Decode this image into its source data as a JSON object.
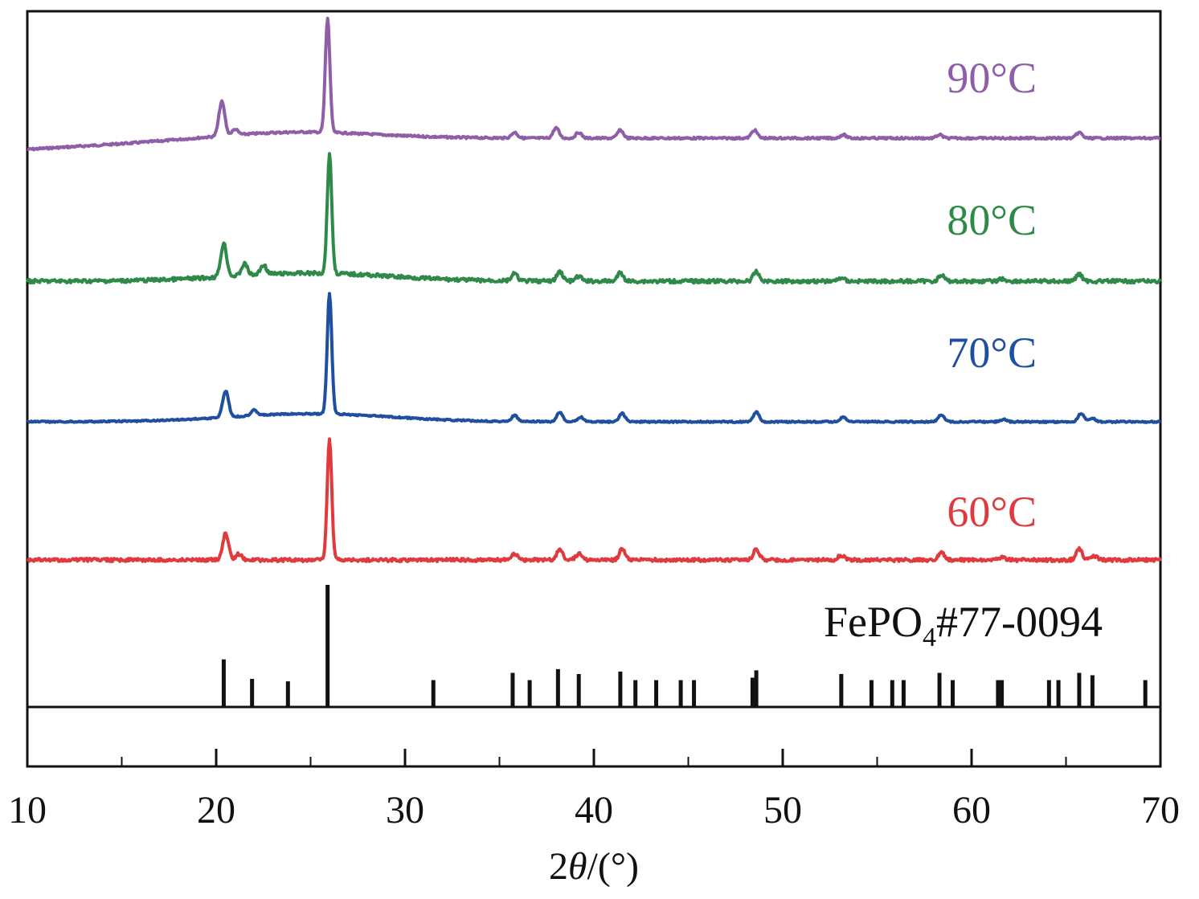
{
  "chart_data": {
    "type": "line",
    "title": "",
    "xlabel_prefix": "2",
    "xlabel_theta": "θ",
    "xlabel_suffix": "/(°)",
    "ylabel": "",
    "xlim": [
      10,
      70
    ],
    "x_ticks": [
      10,
      20,
      30,
      40,
      50,
      60,
      70
    ],
    "x_tick_labels": [
      "10",
      "20",
      "30",
      "40",
      "50",
      "60",
      "70"
    ],
    "grid": false,
    "series": [
      {
        "name": "90°C",
        "color": "#8e5ea8",
        "peaks": [
          {
            "x": 20.3,
            "h": 0.3
          },
          {
            "x": 21.0,
            "h": 0.05
          },
          {
            "x": 25.9,
            "h": 1.0
          },
          {
            "x": 35.8,
            "h": 0.05
          },
          {
            "x": 38.0,
            "h": 0.09
          },
          {
            "x": 39.2,
            "h": 0.05
          },
          {
            "x": 41.4,
            "h": 0.07
          },
          {
            "x": 48.5,
            "h": 0.07
          },
          {
            "x": 53.2,
            "h": 0.03
          },
          {
            "x": 58.3,
            "h": 0.03
          },
          {
            "x": 65.7,
            "h": 0.05
          }
        ]
      },
      {
        "name": "80°C",
        "color": "#2f8a4a",
        "peaks": [
          {
            "x": 20.4,
            "h": 0.28
          },
          {
            "x": 21.5,
            "h": 0.1
          },
          {
            "x": 22.5,
            "h": 0.08
          },
          {
            "x": 26.0,
            "h": 1.0
          },
          {
            "x": 35.8,
            "h": 0.06
          },
          {
            "x": 38.2,
            "h": 0.08
          },
          {
            "x": 39.2,
            "h": 0.04
          },
          {
            "x": 41.4,
            "h": 0.07
          },
          {
            "x": 48.6,
            "h": 0.08
          },
          {
            "x": 53.1,
            "h": 0.03
          },
          {
            "x": 58.4,
            "h": 0.05
          },
          {
            "x": 61.6,
            "h": 0.02
          },
          {
            "x": 65.7,
            "h": 0.06
          }
        ]
      },
      {
        "name": "70°C",
        "color": "#1f4fa0",
        "peaks": [
          {
            "x": 20.5,
            "h": 0.22
          },
          {
            "x": 22.0,
            "h": 0.05
          },
          {
            "x": 26.0,
            "h": 1.0
          },
          {
            "x": 35.8,
            "h": 0.05
          },
          {
            "x": 38.2,
            "h": 0.08
          },
          {
            "x": 39.3,
            "h": 0.04
          },
          {
            "x": 41.5,
            "h": 0.07
          },
          {
            "x": 48.6,
            "h": 0.08
          },
          {
            "x": 53.2,
            "h": 0.04
          },
          {
            "x": 58.4,
            "h": 0.06
          },
          {
            "x": 61.7,
            "h": 0.02
          },
          {
            "x": 65.8,
            "h": 0.07
          },
          {
            "x": 66.4,
            "h": 0.03
          }
        ]
      },
      {
        "name": "60°C",
        "color": "#e03a3e",
        "peaks": [
          {
            "x": 20.5,
            "h": 0.22
          },
          {
            "x": 21.2,
            "h": 0.05
          },
          {
            "x": 26.0,
            "h": 1.0
          },
          {
            "x": 35.8,
            "h": 0.05
          },
          {
            "x": 38.2,
            "h": 0.09
          },
          {
            "x": 39.2,
            "h": 0.05
          },
          {
            "x": 41.5,
            "h": 0.09
          },
          {
            "x": 48.6,
            "h": 0.09
          },
          {
            "x": 53.1,
            "h": 0.04
          },
          {
            "x": 58.4,
            "h": 0.07
          },
          {
            "x": 61.6,
            "h": 0.02
          },
          {
            "x": 65.7,
            "h": 0.09
          },
          {
            "x": 66.5,
            "h": 0.03
          }
        ]
      }
    ],
    "reference": {
      "name_main": "FePO",
      "name_sub": "4",
      "name_suffix": "#77-0094",
      "color": "#111111",
      "lines": [
        {
          "x": 20.4,
          "h": 0.39
        },
        {
          "x": 21.9,
          "h": 0.23
        },
        {
          "x": 23.8,
          "h": 0.21
        },
        {
          "x": 25.9,
          "h": 1.0
        },
        {
          "x": 31.5,
          "h": 0.22
        },
        {
          "x": 35.7,
          "h": 0.28
        },
        {
          "x": 36.6,
          "h": 0.22
        },
        {
          "x": 38.1,
          "h": 0.31
        },
        {
          "x": 39.2,
          "h": 0.27
        },
        {
          "x": 41.4,
          "h": 0.29
        },
        {
          "x": 42.2,
          "h": 0.22
        },
        {
          "x": 43.3,
          "h": 0.22
        },
        {
          "x": 44.6,
          "h": 0.22
        },
        {
          "x": 45.3,
          "h": 0.22
        },
        {
          "x": 48.4,
          "h": 0.24
        },
        {
          "x": 48.6,
          "h": 0.3
        },
        {
          "x": 53.1,
          "h": 0.27
        },
        {
          "x": 54.7,
          "h": 0.22
        },
        {
          "x": 55.8,
          "h": 0.22
        },
        {
          "x": 56.4,
          "h": 0.22
        },
        {
          "x": 58.3,
          "h": 0.28
        },
        {
          "x": 59.0,
          "h": 0.22
        },
        {
          "x": 61.4,
          "h": 0.22
        },
        {
          "x": 61.6,
          "h": 0.22
        },
        {
          "x": 64.1,
          "h": 0.22
        },
        {
          "x": 64.6,
          "h": 0.22
        },
        {
          "x": 65.7,
          "h": 0.28
        },
        {
          "x": 66.4,
          "h": 0.26
        },
        {
          "x": 69.2,
          "h": 0.22
        }
      ]
    }
  }
}
